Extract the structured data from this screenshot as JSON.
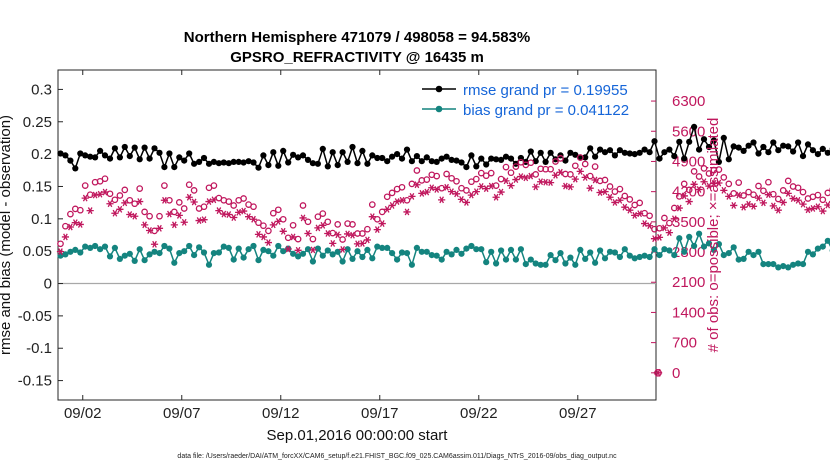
{
  "chart_data": {
    "type": "line",
    "title": "Northern Hemisphere 471079 / 498058 = 94.583%",
    "subtitle": "GPSRO_REFRACTIVITY @ 16435 m",
    "xlabel": "Sep.01,2016 00:00:00 start",
    "ylabel": "rmse and bias (model - observation)",
    "ylabel_right": "# of obs: o=possible; ×=assimilated",
    "footer": "data file: /Users/raeder/DAI/ATM_forcXX/CAM6_setup/f.e21.FHIST_BGC.f09_025.CAM6assim.011/Diags_NTrS_2016-09/obs_diag_output.nc",
    "xlim": [
      0.75,
      30.95
    ],
    "ylim": [
      -0.18,
      0.33
    ],
    "ylim_right": [
      -630,
      7020
    ],
    "x_tick_labels": [
      "09/02",
      "09/07",
      "09/12",
      "09/17",
      "09/22",
      "09/27"
    ],
    "x_tick_days": [
      2,
      7,
      12,
      17,
      22,
      27
    ],
    "y_ticks": [
      -0.15,
      -0.1,
      -0.05,
      0,
      0.05,
      0.1,
      0.15,
      0.2,
      0.25,
      0.3
    ],
    "y_tick_labels": [
      "-0.15",
      "-0.1",
      "-0.05",
      "0",
      "0.05",
      "0.1",
      "0.15",
      "0.2",
      "0.25",
      "0.3"
    ],
    "y_right_ticks": [
      0,
      700,
      1400,
      2100,
      2800,
      3500,
      4200,
      4900,
      5600,
      6300
    ],
    "y_right_tick_labels": [
      "0",
      "700",
      "1400",
      "2100",
      "2800",
      "3500",
      "4200",
      "4900",
      "5600",
      "6300"
    ],
    "zero_line": 0,
    "legend": {
      "position": "top-right",
      "entries": [
        "rmse grand pr = 0.19955",
        "bias grand pr = 0.041122"
      ]
    },
    "x_start_day": 0.875,
    "x_step_days": 0.25,
    "series": [
      {
        "name": "rmse",
        "color": "#000000",
        "marker": "filled-circle",
        "values": [
          0.201,
          0.198,
          0.19,
          0.178,
          0.201,
          0.198,
          0.196,
          0.195,
          0.205,
          0.198,
          0.193,
          0.209,
          0.195,
          0.211,
          0.197,
          0.21,
          0.192,
          0.21,
          0.193,
          0.209,
          0.202,
          0.18,
          0.201,
          0.18,
          0.195,
          0.19,
          0.201,
          0.185,
          0.188,
          0.194,
          0.185,
          0.188,
          0.186,
          0.187,
          0.186,
          0.188,
          0.188,
          0.187,
          0.189,
          0.187,
          0.179,
          0.198,
          0.183,
          0.203,
          0.182,
          0.205,
          0.187,
          0.199,
          0.195,
          0.198,
          0.191,
          0.186,
          0.185,
          0.208,
          0.181,
          0.203,
          0.183,
          0.203,
          0.188,
          0.211,
          0.186,
          0.205,
          0.185,
          0.198,
          0.194,
          0.194,
          0.189,
          0.196,
          0.2,
          0.193,
          0.207,
          0.189,
          0.197,
          0.189,
          0.195,
          0.189,
          0.188,
          0.193,
          0.196,
          0.191,
          0.19,
          0.187,
          0.18,
          0.198,
          0.181,
          0.193,
          0.184,
          0.193,
          0.192,
          0.191,
          0.196,
          0.193,
          0.185,
          0.194,
          0.188,
          0.204,
          0.189,
          0.202,
          0.188,
          0.202,
          0.192,
          0.198,
          0.19,
          0.202,
          0.199,
          0.195,
          0.195,
          0.209,
          0.196,
          0.207,
          0.203,
          0.206,
          0.198,
          0.206,
          0.202,
          0.201,
          0.2,
          0.202,
          0.207,
          0.203,
          0.22,
          0.193,
          0.203,
          0.207,
          0.197,
          0.219,
          0.193,
          0.219,
          0.242,
          0.207,
          0.223,
          0.211,
          0.221,
          0.188,
          0.225,
          0.192,
          0.212,
          0.21,
          0.205,
          0.213,
          0.218,
          0.201,
          0.211,
          0.203,
          0.218,
          0.206,
          0.213,
          0.212,
          0.204,
          0.218,
          0.197,
          0.215,
          0.206,
          0.2,
          0.208,
          0.202,
          0.208,
          0.195,
          0.21,
          0.2
        ]
      },
      {
        "name": "bias",
        "color": "#14847f",
        "marker": "filled-circle",
        "values": [
          0.043,
          0.045,
          0.049,
          0.052,
          0.048,
          0.057,
          0.055,
          0.058,
          0.053,
          0.057,
          0.042,
          0.055,
          0.038,
          0.043,
          0.046,
          0.035,
          0.053,
          0.036,
          0.045,
          0.049,
          0.047,
          0.058,
          0.054,
          0.032,
          0.047,
          0.05,
          0.058,
          0.044,
          0.056,
          0.048,
          0.029,
          0.047,
          0.048,
          0.057,
          0.055,
          0.037,
          0.054,
          0.04,
          0.053,
          0.058,
          0.036,
          0.052,
          0.05,
          0.043,
          0.058,
          0.05,
          0.054,
          0.046,
          0.042,
          0.046,
          0.053,
          0.034,
          0.054,
          0.043,
          0.051,
          0.045,
          0.049,
          0.034,
          0.053,
          0.038,
          0.05,
          0.041,
          0.052,
          0.039,
          0.057,
          0.055,
          0.055,
          0.047,
          0.037,
          0.048,
          0.047,
          0.029,
          0.055,
          0.049,
          0.049,
          0.044,
          0.043,
          0.037,
          0.049,
          0.045,
          0.052,
          0.046,
          0.054,
          0.058,
          0.053,
          0.053,
          0.033,
          0.049,
          0.031,
          0.051,
          0.037,
          0.052,
          0.037,
          0.053,
          0.03,
          0.037,
          0.031,
          0.029,
          0.029,
          0.044,
          0.036,
          0.047,
          0.031,
          0.04,
          0.029,
          0.052,
          0.038,
          0.048,
          0.032,
          0.051,
          0.039,
          0.049,
          0.048,
          0.041,
          0.053,
          0.043,
          0.039,
          0.041,
          0.043,
          0.041,
          0.053,
          0.044,
          0.053,
          0.051,
          0.044,
          0.07,
          0.049,
          0.072,
          0.058,
          0.077,
          0.057,
          0.062,
          0.052,
          0.061,
          0.044,
          0.047,
          0.056,
          0.037,
          0.038,
          0.049,
          0.044,
          0.049,
          0.03,
          0.03,
          0.03,
          0.025,
          0.027,
          0.025,
          0.029,
          0.031,
          0.03,
          0.049,
          0.045,
          0.054,
          0.057,
          0.066,
          0.051,
          0.073,
          0.081,
          0.069,
          0.076,
          0.06,
          0.059,
          0.053,
          0.056,
          0.046,
          0.045
        ]
      },
      {
        "name": "obs possible",
        "axis": "right",
        "color": "#c0175d",
        "marker": "open-circle",
        "values": [
          2990,
          3400,
          3680,
          3800,
          3770,
          4340,
          4130,
          4420,
          4440,
          4500,
          4150,
          4010,
          4110,
          4240,
          4000,
          3920,
          4270,
          3730,
          3630,
          3290,
          3630,
          4340,
          4000,
          3730,
          3950,
          3810,
          4360,
          4230,
          3810,
          3850,
          4290,
          4340,
          4050,
          4000,
          3970,
          3880,
          4000,
          4040,
          3900,
          3850,
          3480,
          3410,
          3290,
          3700,
          3780,
          3560,
          3130,
          3420,
          3100,
          3880,
          3500,
          3100,
          3620,
          3690,
          3500,
          3240,
          3440,
          3090,
          3460,
          3440,
          3230,
          3230,
          3330,
          3900,
          3560,
          3730,
          4080,
          4170,
          4260,
          4300,
          4000,
          4380,
          4690,
          4460,
          4480,
          4590,
          4560,
          4280,
          4610,
          4510,
          4440,
          4280,
          4230,
          4430,
          4490,
          4630,
          4570,
          4630,
          4340,
          4490,
          4770,
          4640,
          4780,
          4880,
          4820,
          4870,
          4600,
          4730,
          4720,
          4720,
          4900,
          4970,
          4610,
          4600,
          4800,
          4990,
          4840,
          4560,
          4780,
          4450,
          4470,
          4320,
          4200,
          4260,
          4100,
          4020,
          3890,
          3940,
          3700,
          3640,
          3330,
          3350,
          3590,
          3470,
          3820,
          4090,
          4380,
          4240,
          4670,
          4550,
          4740,
          4620,
          4700,
          4710,
          4530,
          4380,
          4160,
          4410,
          4110,
          4190,
          4130,
          4330,
          4220,
          4420,
          4140,
          4030,
          4230,
          4450,
          4320,
          4290,
          4190,
          4040,
          4080,
          4120,
          4010,
          4170,
          4250,
          4040,
          4170,
          4360,
          4540,
          4630,
          4710,
          4650,
          4720
        ]
      },
      {
        "name": "obs assimilated",
        "axis": "right",
        "color": "#c0175d",
        "marker": "asterisk",
        "values": [
          2810,
          3150,
          3380,
          3480,
          3440,
          4050,
          3760,
          4120,
          4140,
          4190,
          3920,
          3700,
          3790,
          3940,
          3670,
          3630,
          3970,
          3430,
          3300,
          2980,
          3350,
          4000,
          3680,
          3430,
          3650,
          3490,
          4070,
          3960,
          3530,
          3550,
          3970,
          4010,
          3760,
          3680,
          3670,
          3600,
          3720,
          3750,
          3620,
          3560,
          3210,
          3150,
          3020,
          3430,
          3510,
          3280,
          2870,
          3150,
          2840,
          3590,
          3230,
          2850,
          3360,
          3420,
          3230,
          3000,
          3200,
          2860,
          3220,
          3190,
          2990,
          3000,
          3080,
          3620,
          3320,
          3460,
          3790,
          3880,
          3970,
          4000,
          3730,
          4090,
          4360,
          4160,
          4190,
          4290,
          4250,
          4010,
          4300,
          4200,
          4150,
          4020,
          3950,
          4120,
          4200,
          4320,
          4270,
          4330,
          4070,
          4190,
          4450,
          4340,
          4480,
          4550,
          4520,
          4560,
          4310,
          4430,
          4420,
          4410,
          4580,
          4650,
          4330,
          4310,
          4490,
          4670,
          4530,
          4280,
          4470,
          4180,
          4200,
          4070,
          3950,
          4000,
          3840,
          3770,
          3650,
          3690,
          3460,
          3410,
          3110,
          3140,
          3360,
          3250,
          3570,
          3820,
          4100,
          3970,
          4370,
          4250,
          4430,
          4330,
          4390,
          4400,
          4230,
          4090,
          3880,
          4120,
          3840,
          3910,
          3860,
          4050,
          3940,
          4130,
          3870,
          3770,
          3950,
          4160,
          4040,
          4000,
          3910,
          3780,
          3810,
          3850,
          3750,
          3890,
          3970,
          3770,
          3890,
          4080,
          4250,
          4330,
          4400,
          4350,
          4410
        ]
      }
    ],
    "extra_point": {
      "name": "obs count at end",
      "x_day": 31.05,
      "value": 0
    }
  }
}
